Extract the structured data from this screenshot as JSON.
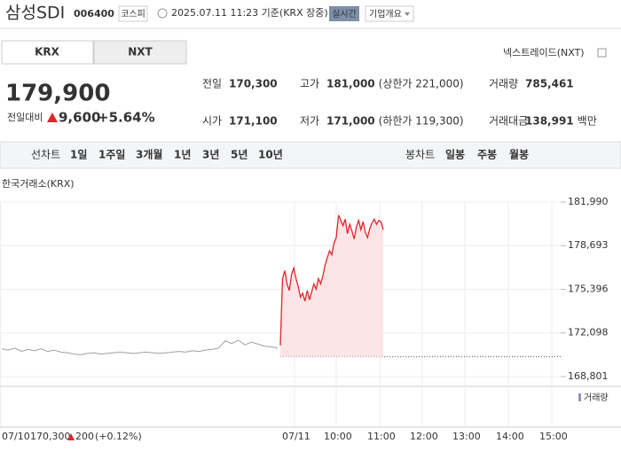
{
  "header": {
    "title": "삼성SDI",
    "code": "006400",
    "market": "코스피",
    "timestamp": "2025.07.11 11:23 기준(KRX 장중)",
    "realtime": "실시간",
    "company_info": "기업개요"
  },
  "tabs": [
    "KRX",
    "NXT"
  ],
  "nxt_link": "넥스트레이드(NXT)",
  "price": {
    "current": "179,900",
    "change_label": "전일대비",
    "change": "9,600",
    "change_pct": "+5.64%"
  },
  "stats": [
    {
      "label": "전일",
      "value": "170,300"
    },
    {
      "label": "고가",
      "value": "181,000",
      "note": "(상한가 221,000)"
    },
    {
      "label": "거래량",
      "value": "785,461"
    },
    {
      "label": "시가",
      "value": "171,100"
    },
    {
      "label": "저가",
      "value": "171,000",
      "note": "(하한가 119,300)"
    },
    {
      "label": "거래대금",
      "value": "138,991",
      "unit": "백만"
    }
  ],
  "line_periods": {
    "label": "선차트",
    "items": [
      "1일",
      "1주일",
      "3개월",
      "1년",
      "3년",
      "5년",
      "10년"
    ]
  },
  "candle_periods": {
    "label": "봉차트",
    "items": [
      "일봉",
      "주봉",
      "월봉"
    ]
  },
  "chart_data": {
    "type": "line",
    "subtitle": "한국거래소(KRX)",
    "xlabels": [
      "07/10",
      "07/11",
      "10:00",
      "11:00",
      "12:00",
      "13:00",
      "14:00",
      "15:00"
    ],
    "ylim": [
      168332,
      183061
    ],
    "yticks": [
      {
        "value": 168801,
        "label": "168,801"
      },
      {
        "value": 172098,
        "label": "172,098"
      },
      {
        "value": 175396,
        "label": "175,396"
      },
      {
        "value": 178693,
        "label": "178,693"
      },
      {
        "value": 181990,
        "label": "181,990"
      }
    ],
    "reference": 170300,
    "series": [
      {
        "color": "#a0a0a0",
        "values": [
          170900,
          170800,
          170950,
          170700,
          170850,
          170750,
          170900,
          170700,
          170800,
          170650,
          170600,
          170500,
          170450,
          170550,
          170600,
          170500,
          170550,
          170600,
          170650,
          170600,
          170550,
          170600,
          170650,
          170600,
          170550,
          170600,
          170650,
          170700,
          170650,
          170750,
          170700,
          170800,
          170850,
          170950,
          171500,
          171300,
          171550,
          171200,
          171400,
          171250,
          171100,
          171050,
          170950
        ]
      },
      {
        "color": "#e0252a",
        "fill": "#fde4e6",
        "values": [
          171150,
          176200,
          176800,
          175800,
          175300,
          176500,
          177000,
          176200,
          175600,
          174800,
          175100,
          174500,
          175300,
          174600,
          175200,
          175800,
          175400,
          176200,
          175800,
          176400,
          177200,
          177800,
          178300,
          178000,
          178900,
          179300,
          181000,
          180600,
          180200,
          180700,
          179600,
          180300,
          179800,
          179200,
          180100,
          180600,
          179900,
          180500,
          179700,
          179300,
          180000,
          180400,
          180700,
          180300,
          180600,
          180500,
          179900
        ]
      }
    ],
    "volume_label": "거래량"
  },
  "footer": {
    "close": "170,300",
    "change": "200",
    "change_pct": "(+0.12%)"
  }
}
